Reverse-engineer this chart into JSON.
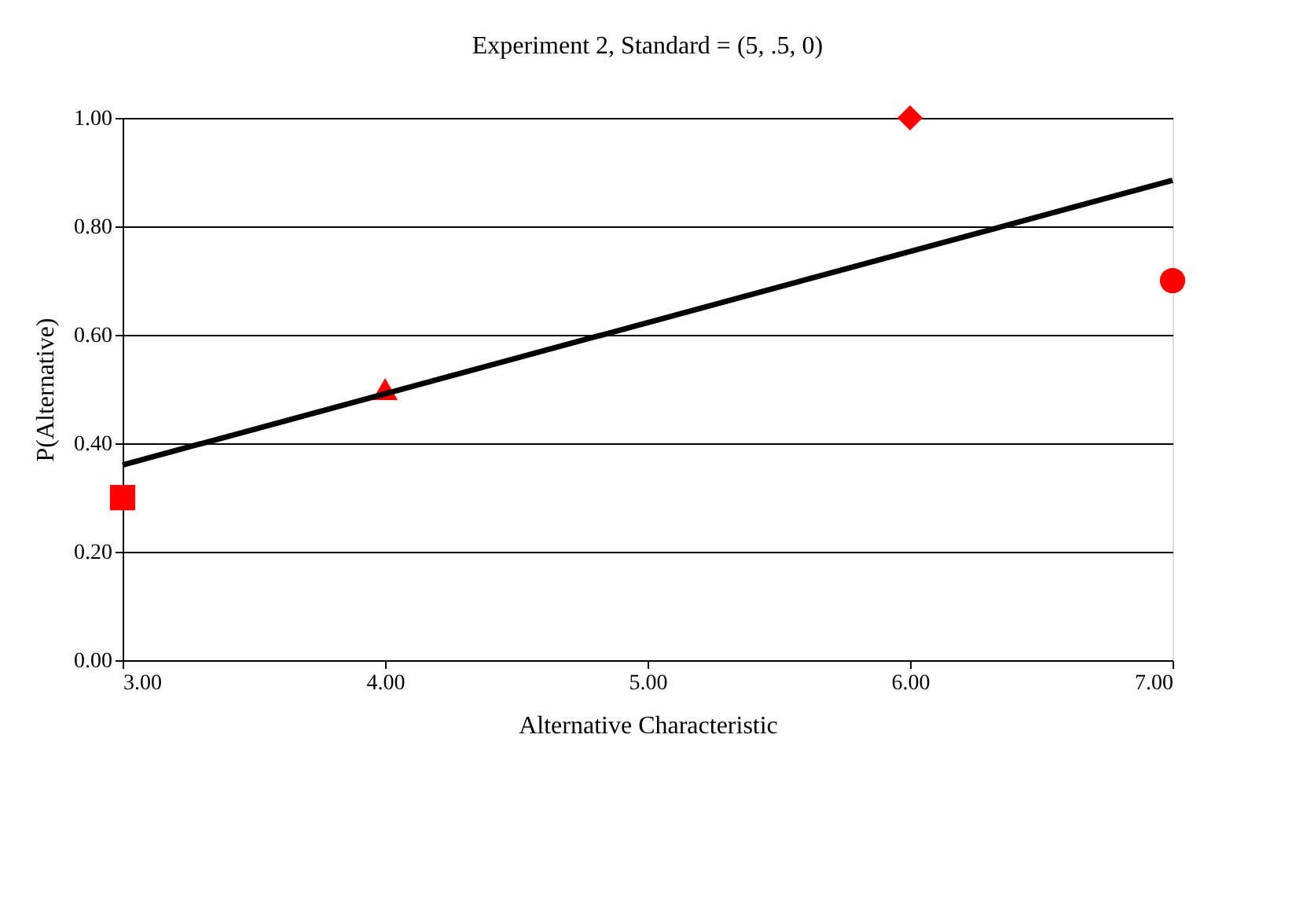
{
  "chart_data": {
    "type": "scatter",
    "title": "Experiment 2, Standard = (5, .5, 0)",
    "xlabel": "Alternative Characteristic",
    "ylabel": "P(Alternative)",
    "xlim": [
      3,
      7
    ],
    "xticks": [
      {
        "value": 3,
        "label": "3.00"
      },
      {
        "value": 4,
        "label": "4.00"
      },
      {
        "value": 5,
        "label": "5.00"
      },
      {
        "value": 6,
        "label": "6.00"
      },
      {
        "value": 7,
        "label": "7.00"
      }
    ],
    "ylim": [
      0,
      1
    ],
    "yticks": [
      {
        "value": 0,
        "label": "0.00"
      },
      {
        "value": 0.2,
        "label": "0.20"
      },
      {
        "value": 0.4,
        "label": "0.40"
      },
      {
        "value": 0.6,
        "label": "0.60"
      },
      {
        "value": 0.8,
        "label": "0.80"
      },
      {
        "value": 1,
        "label": "1.00"
      }
    ],
    "grid": "y",
    "series": [
      {
        "type": "scatter",
        "marker": "square",
        "color": "#ff0000",
        "x": [
          3
        ],
        "values": [
          0.3
        ]
      },
      {
        "type": "scatter",
        "marker": "triangle",
        "color": "#ff0000",
        "x": [
          4
        ],
        "values": [
          0.5
        ]
      },
      {
        "type": "scatter",
        "marker": "diamond",
        "color": "#ff0000",
        "x": [
          6
        ],
        "values": [
          1.0
        ]
      },
      {
        "type": "scatter",
        "marker": "circle",
        "color": "#ff0000",
        "x": [
          7
        ],
        "values": [
          0.7
        ]
      },
      {
        "type": "line",
        "marker": "none",
        "line_style": "solid",
        "color": "#000000",
        "x": [
          3,
          7
        ],
        "values": [
          0.36,
          0.885
        ]
      }
    ]
  }
}
